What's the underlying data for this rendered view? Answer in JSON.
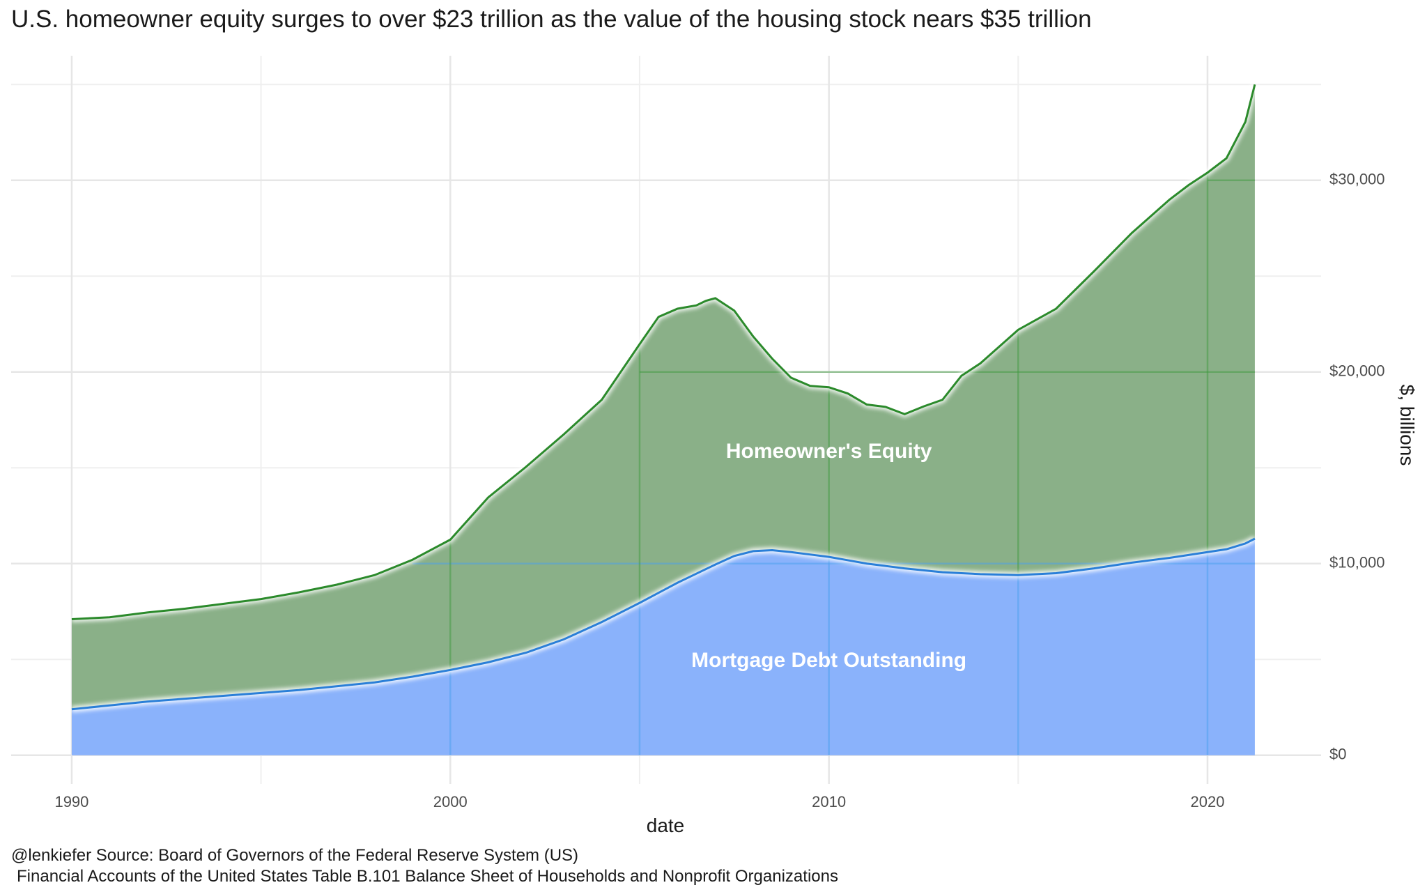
{
  "chart_data": {
    "type": "area",
    "title": "U.S. homeowner equity surges to over $23 trillion as the value of the housing stock nears $35 trillion",
    "xlabel": "date",
    "ylabel": "$, billions",
    "xlim": [
      1988.4,
      2023.0
    ],
    "ylim": [
      -1500,
      36500
    ],
    "x_ticks": [
      1990,
      2000,
      2010,
      2020
    ],
    "x_tick_labels": [
      "1990",
      "2000",
      "2010",
      "2020"
    ],
    "y_ticks": [
      0,
      10000,
      20000,
      30000
    ],
    "y_tick_labels": [
      "$0",
      "$10,000",
      "$20,000",
      "$30,000"
    ],
    "grid": true,
    "y_axis_position": "right",
    "colors": {
      "mortgage_fill": "#8ab2fb",
      "mortgage_line": "#2a7fd8",
      "equity_fill": "#8ab088",
      "equity_line": "#2b8a2b",
      "grid": "#e6e6e6"
    },
    "annotations": [
      {
        "text": "Homeowner's Equity",
        "x": 2010,
        "y": 15800
      },
      {
        "text": "Mortgage Debt Outstanding",
        "x": 2010,
        "y": 4900
      }
    ],
    "series": [
      {
        "name": "Mortgage Debt Outstanding",
        "x": [
          1990,
          1991,
          1992,
          1993,
          1994,
          1995,
          1996,
          1997,
          1998,
          1999,
          2000,
          2001,
          2002,
          2003,
          2004,
          2005,
          2006,
          2007,
          2007.5,
          2008,
          2008.5,
          2009,
          2010,
          2011,
          2012,
          2013,
          2014,
          2015,
          2016,
          2017,
          2018,
          2019,
          2020,
          2020.5,
          2021,
          2021.25
        ],
        "values": [
          2400,
          2600,
          2800,
          2950,
          3100,
          3250,
          3400,
          3600,
          3800,
          4100,
          4450,
          4850,
          5350,
          6050,
          6950,
          7950,
          9000,
          9950,
          10400,
          10650,
          10700,
          10600,
          10350,
          10000,
          9750,
          9550,
          9450,
          9400,
          9500,
          9750,
          10050,
          10300,
          10600,
          10750,
          11050,
          11300
        ]
      },
      {
        "name": "Homeowner's Equity",
        "x": [
          1990,
          1991,
          1992,
          1993,
          1994,
          1995,
          1996,
          1997,
          1998,
          1999,
          2000,
          2001,
          2002,
          2003,
          2004,
          2005,
          2005.5,
          2006,
          2006.5,
          2006.75,
          2007,
          2007.5,
          2008,
          2008.5,
          2009,
          2009.5,
          2010,
          2010.5,
          2011,
          2011.5,
          2012,
          2012.5,
          2013,
          2013.5,
          2014,
          2015,
          2016,
          2017,
          2018,
          2019,
          2019.5,
          2020,
          2020.5,
          2021,
          2021.25
        ],
        "values": [
          4700,
          4600,
          4650,
          4700,
          4800,
          4900,
          5100,
          5300,
          5600,
          6100,
          6800,
          8600,
          9700,
          10700,
          11600,
          13500,
          14400,
          14300,
          14000,
          14000,
          13900,
          12800,
          11200,
          10000,
          9100,
          8800,
          8850,
          8700,
          8300,
          8300,
          8050,
          8550,
          9000,
          10300,
          11000,
          12800,
          13800,
          15500,
          17200,
          18700,
          19300,
          19800,
          20400,
          22000,
          23700
        ]
      }
    ]
  },
  "caption": {
    "line1": "@lenkiefer Source: Board of Governors of the Federal Reserve System (US)",
    "line2": "Financial Accounts of the United States Table B.101 Balance Sheet of Households and Nonprofit Organizations"
  }
}
